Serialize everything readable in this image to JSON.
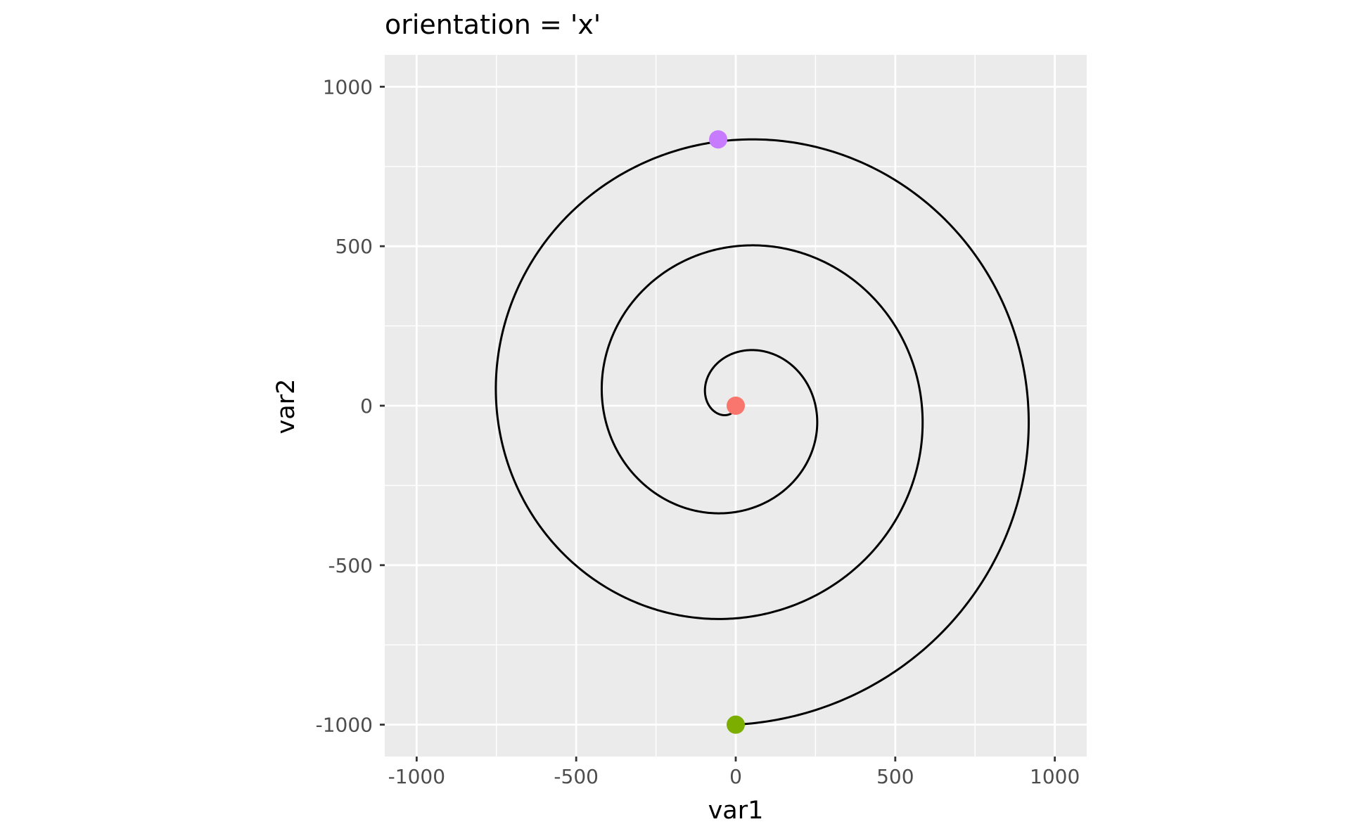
{
  "chart_data": {
    "type": "line",
    "title": "orientation = 'x'",
    "xlabel": "var1",
    "ylabel": "var2",
    "xlim": [
      -1100,
      1100
    ],
    "ylim": [
      -1100,
      1100
    ],
    "x_ticks": [
      -1000,
      -500,
      0,
      500,
      1000
    ],
    "y_ticks": [
      -1000,
      -500,
      0,
      500,
      1000
    ],
    "x_tick_labels": [
      "-1000",
      "-500",
      "0",
      "500",
      "1000"
    ],
    "y_tick_labels": [
      "-1000",
      "-500",
      "0",
      "500",
      "1000"
    ],
    "grid": true,
    "legend": "none",
    "panel_background": "#EBEBEB",
    "grid_color": "#FFFFFF",
    "line_color": "#000000",
    "spiral": {
      "description_type": "archimedean-spiral",
      "start": [
        0,
        0
      ],
      "end": [
        0,
        -1000
      ],
      "turns": 3,
      "notable_points": [
        {
          "x": 50,
          "y": -30
        },
        {
          "x": 98,
          "y": 50
        },
        {
          "x": -55,
          "y": 175
        },
        {
          "x": -255,
          "y": -55
        },
        {
          "x": 52,
          "y": -338
        },
        {
          "x": 420,
          "y": 50
        },
        {
          "x": -55,
          "y": 500
        },
        {
          "x": -587,
          "y": -55
        },
        {
          "x": 52,
          "y": -670
        },
        {
          "x": 753,
          "y": 50
        },
        {
          "x": -55,
          "y": 835
        },
        {
          "x": -917,
          "y": -55
        },
        {
          "x": 0,
          "y": -1000
        }
      ]
    },
    "points": [
      {
        "x": 0,
        "y": 0,
        "color": "#F8766D"
      },
      {
        "x": -55,
        "y": 835,
        "color": "#C77CFF"
      },
      {
        "x": 0,
        "y": -1000,
        "color": "#7CAE00"
      }
    ]
  }
}
